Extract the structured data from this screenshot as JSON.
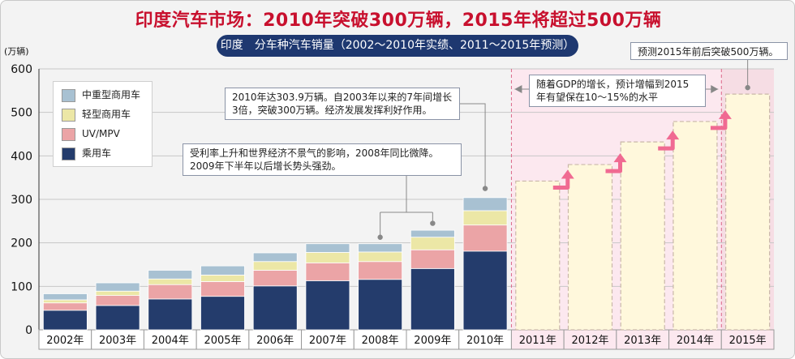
{
  "header": {
    "title": "印度汽车市场：2010年突破300万辆，2015年将超过500万辆",
    "subtitle": "印度　分车种汽车销量（2002～2010年实绩、2011～2015年预测）"
  },
  "chart_data": {
    "type": "bar",
    "stacked": true,
    "unit_label": "(万辆)",
    "ylim": [
      0,
      600
    ],
    "yticks": [
      0,
      100,
      200,
      300,
      400,
      500,
      600
    ],
    "grid": true,
    "legend_position": "top-left",
    "categories": [
      "2002年",
      "2003年",
      "2004年",
      "2005年",
      "2006年",
      "2007年",
      "2008年",
      "2009年",
      "2010年",
      "2011年",
      "2012年",
      "2013年",
      "2014年",
      "2015年"
    ],
    "series": [
      {
        "name": "乘用车",
        "color": "#243c6c",
        "values": [
          45,
          56,
          71,
          77,
          101,
          113,
          116,
          141,
          181,
          null,
          null,
          null,
          null,
          null
        ]
      },
      {
        "name": "UV/MPV",
        "color": "#eba4a6",
        "values": [
          17,
          23,
          33,
          34,
          36,
          41,
          41,
          43,
          60,
          null,
          null,
          null,
          null,
          null
        ]
      },
      {
        "name": "轻型商用车",
        "color": "#ece7a6",
        "values": [
          7,
          10,
          13,
          15,
          20,
          24,
          22,
          29,
          33,
          null,
          null,
          null,
          null,
          null
        ]
      },
      {
        "name": "中重型商用车",
        "color": "#a8c1d2",
        "values": [
          14,
          19,
          20,
          21,
          20,
          20,
          19,
          16,
          30,
          null,
          null,
          null,
          null,
          null
        ]
      }
    ],
    "forecast_totals": [
      null,
      null,
      null,
      null,
      null,
      null,
      null,
      null,
      null,
      342,
      380,
      432,
      479,
      542
    ],
    "annotations": {
      "note_2010": "2010年达303.9万辆。自2003年以来的7年间增长3倍，突破300万辆。经济发展发挥利好作用。",
      "note_2008": "受利率上升和世界经济不景气的影响，2008年同比微降。2009年下半年以后增长势头强劲。",
      "note_forecast": "随着GDP的增长，预计增幅到2015年有望保在10～15%的水平",
      "note_2015": "预测2015年前后突破500万辆。"
    }
  },
  "colors": {
    "title": "#c8102e",
    "subtitle_bg": "#1e3870",
    "forecast_bg": "#fce8ef",
    "forecast_fill": "#fff8dc",
    "arrow": "#f06a92"
  }
}
